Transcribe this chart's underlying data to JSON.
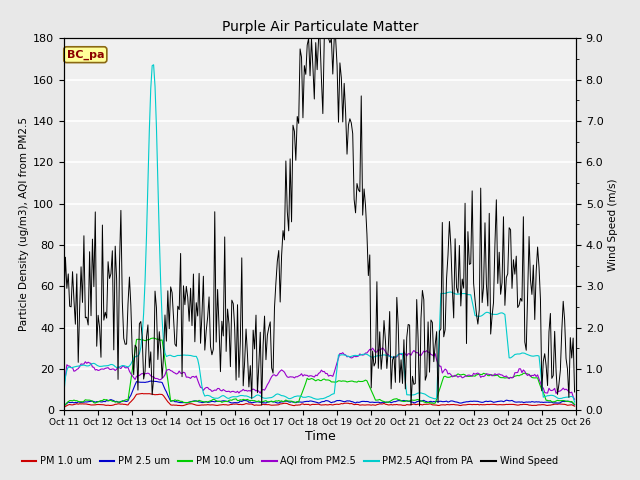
{
  "title": "Purple Air Particulate Matter",
  "xlabel": "Time",
  "ylabel_left": "Particle Density (ug/m3), AQI from PM2.5",
  "ylabel_right": "Wind Speed (m/s)",
  "ylim_left": [
    0,
    180
  ],
  "ylim_right": [
    0.0,
    9.0
  ],
  "yticks_left": [
    0,
    20,
    40,
    60,
    80,
    100,
    120,
    140,
    160,
    180
  ],
  "yticks_right": [
    0.0,
    1.0,
    2.0,
    3.0,
    4.0,
    5.0,
    6.0,
    7.0,
    8.0,
    9.0
  ],
  "xtick_labels": [
    "Oct 11",
    "Oct 12",
    "Oct 13",
    "Oct 14",
    "Oct 15",
    "Oct 16",
    "Oct 17",
    "Oct 18",
    "Oct 19",
    "Oct 20",
    "Oct 21",
    "Oct 22",
    "Oct 23",
    "Oct 24",
    "Oct 25",
    "Oct 26"
  ],
  "annotation_text": "BC_pa",
  "annotation_color": "#8B0000",
  "annotation_bg": "#FFFF99",
  "annotation_border": "#8B6914",
  "legend_entries": [
    {
      "label": "PM 1.0 um",
      "color": "#CC0000"
    },
    {
      "label": "PM 2.5 um",
      "color": "#0000CC"
    },
    {
      "label": "PM 10.0 um",
      "color": "#00CC00"
    },
    {
      "label": "AQI from PM2.5",
      "color": "#9900CC"
    },
    {
      "label": "PM2.5 AQI from PA",
      "color": "#00CCCC"
    },
    {
      "label": "Wind Speed",
      "color": "#000000"
    }
  ],
  "background_color": "#E8E8E8",
  "plot_bg": "#F0F0F0",
  "grid_color": "#FFFFFF",
  "n_days": 15,
  "pts_per_day": 24,
  "wind_scale": 20.0
}
